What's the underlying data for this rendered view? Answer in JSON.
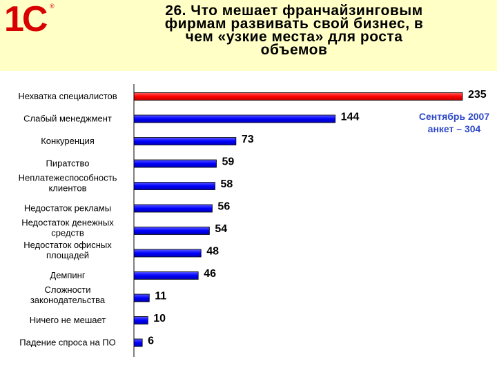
{
  "header": {
    "logo_text": "1С",
    "logo_mark": "®",
    "title_lines": [
      "26. Что мешает франчайзинговым",
      "фирмам развивать свой бизнес,  в",
      "чем «узкие места»  для роста",
      "объемов"
    ]
  },
  "note": {
    "line1": "Сентябрь 2007",
    "line2": "анкет – 304"
  },
  "colors": {
    "header_bg": "#FFFFC6",
    "logo": "#D80000",
    "bar_highlight": "#FF0000",
    "bar": "#0000FF",
    "note": "#2F49C8"
  },
  "chart_data": {
    "type": "bar",
    "orientation": "horizontal",
    "categories": [
      "Нехватка специалистов",
      "Слабый менеджмент",
      "Конкуренция",
      "Пиратство",
      "Неплатежеспособность клиентов",
      "Недостаток рекламы",
      "Недостаток денежных средств",
      "Недостаток офисных площадей",
      "Демпинг",
      "Сложности законодательства",
      "Ничего не мешает",
      "Падение спроса на ПО"
    ],
    "category_lines": [
      [
        "Нехватка специалистов"
      ],
      [
        "Слабый менеджмент"
      ],
      [
        "Конкуренция"
      ],
      [
        "Пиратство"
      ],
      [
        "Неплатежеспособность",
        "клиентов"
      ],
      [
        "Недостаток рекламы"
      ],
      [
        "Недостаток денежных",
        "средств"
      ],
      [
        "Недостаток офисных",
        "площадей"
      ],
      [
        "Демпинг"
      ],
      [
        "Сложности",
        "законодательства"
      ],
      [
        "Ничего не мешает"
      ],
      [
        "Падение спроса на ПО"
      ]
    ],
    "values": [
      235,
      144,
      73,
      59,
      58,
      56,
      54,
      48,
      46,
      11,
      10,
      6
    ],
    "xlim": [
      0,
      235
    ],
    "highlight_index": 0,
    "title": "",
    "xlabel": "",
    "ylabel": "",
    "grid": false,
    "legend": "none"
  }
}
